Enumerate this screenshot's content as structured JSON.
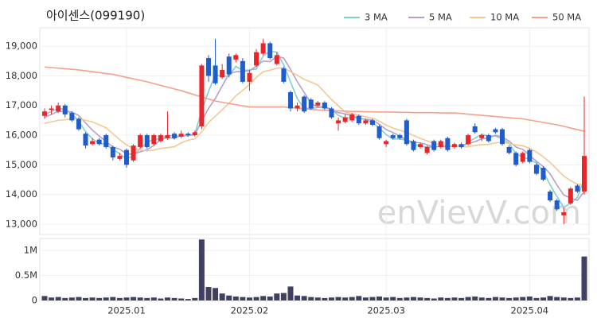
{
  "chart_data": [
    {
      "type": "candlestick",
      "title": "아이센스(099190)",
      "watermark": "enVievV.com",
      "up_color": "#e8262a",
      "down_color": "#1f5ccc",
      "grid": true,
      "legend": "top-right",
      "categories": [
        null,
        null,
        null,
        null,
        null,
        null,
        null,
        null,
        null,
        null,
        null,
        null,
        "2025.01",
        null,
        null,
        null,
        null,
        null,
        null,
        null,
        null,
        null,
        null,
        null,
        null,
        null,
        null,
        null,
        null,
        null,
        "2025.02",
        null,
        null,
        null,
        null,
        null,
        null,
        null,
        null,
        null,
        null,
        null,
        null,
        null,
        null,
        null,
        null,
        null,
        null,
        null,
        "2025.03",
        null,
        null,
        null,
        null,
        null,
        null,
        null,
        null,
        null,
        null,
        null,
        null,
        null,
        null,
        null,
        null,
        null,
        null,
        null,
        null,
        "2025.04",
        null,
        null,
        null,
        null,
        null,
        null,
        null,
        null
      ],
      "open": [
        16650,
        16850,
        16800,
        17000,
        16750,
        16550,
        16050,
        15700,
        15850,
        16000,
        15600,
        15200,
        15500,
        15150,
        15600,
        16000,
        15700,
        15800,
        15900,
        16050,
        15950,
        16050,
        16000,
        16300,
        18600,
        18350,
        17950,
        18650,
        18550,
        18500,
        17800,
        18350,
        18750,
        19100,
        18400,
        18250,
        17450,
        16900,
        17300,
        17200,
        17000,
        17100,
        16900,
        16400,
        16450,
        16500,
        16650,
        16400,
        16500,
        16300,
        15700,
        16000,
        16000,
        16500,
        15800,
        15600,
        15400,
        15800,
        15600,
        15900,
        15600,
        15700,
        15700,
        16300,
        15900,
        16000,
        16200,
        16200,
        15600,
        15400,
        15100,
        15500,
        15000,
        14900,
        14100,
        13800,
        13300,
        13700,
        14300,
        14100
      ],
      "high": [
        16900,
        17000,
        17100,
        17050,
        16800,
        16600,
        16100,
        15900,
        15900,
        16050,
        15650,
        15400,
        15550,
        15700,
        16050,
        16050,
        16050,
        16050,
        16800,
        16100,
        16150,
        16100,
        16150,
        18400,
        18700,
        19250,
        18400,
        18750,
        18750,
        18600,
        18200,
        18900,
        19250,
        19150,
        18800,
        18300,
        17500,
        17100,
        17350,
        17250,
        17150,
        17150,
        16950,
        16600,
        16700,
        16750,
        16700,
        16550,
        16550,
        16350,
        15850,
        16050,
        16050,
        16550,
        15850,
        15750,
        15650,
        15850,
        15850,
        15950,
        15750,
        15750,
        16050,
        16400,
        16050,
        16050,
        16250,
        16250,
        15650,
        15450,
        15450,
        15550,
        15050,
        14950,
        14150,
        13850,
        13550,
        14250,
        14350,
        17300
      ],
      "low": [
        16550,
        16700,
        16750,
        16600,
        16450,
        16150,
        15550,
        15650,
        15650,
        15550,
        15150,
        15150,
        14900,
        15100,
        15550,
        15550,
        15650,
        15750,
        15850,
        15850,
        15900,
        15950,
        15950,
        16200,
        17800,
        17700,
        17900,
        17950,
        18450,
        17750,
        17500,
        18300,
        18700,
        18550,
        18350,
        17750,
        16800,
        16800,
        16750,
        16850,
        16950,
        16850,
        16550,
        16150,
        16400,
        16450,
        16350,
        16350,
        16300,
        15850,
        15600,
        15850,
        15850,
        15650,
        15450,
        15550,
        15350,
        15450,
        15550,
        15450,
        15550,
        15550,
        15650,
        16050,
        15800,
        15750,
        16050,
        15650,
        15350,
        14950,
        15050,
        15050,
        14650,
        14450,
        13750,
        13450,
        13000,
        13650,
        14050,
        14000
      ],
      "close": [
        16800,
        16900,
        17000,
        16700,
        16500,
        16200,
        15650,
        15800,
        15700,
        15600,
        15250,
        15300,
        15000,
        15650,
        16000,
        15600,
        16000,
        16000,
        16000,
        15900,
        16050,
        16000,
        16100,
        18350,
        18000,
        17750,
        18200,
        18050,
        18700,
        17800,
        18100,
        18800,
        19100,
        18600,
        18700,
        17800,
        16900,
        17000,
        16800,
        16900,
        17100,
        16900,
        16600,
        16500,
        16600,
        16700,
        16400,
        16500,
        16350,
        15900,
        15800,
        15900,
        15900,
        15700,
        15500,
        15700,
        15600,
        15500,
        15800,
        15500,
        15700,
        15600,
        16000,
        16100,
        16000,
        15800,
        16100,
        15700,
        15400,
        15000,
        15400,
        15100,
        14700,
        14500,
        13800,
        13500,
        13400,
        14200,
        14100,
        15300
      ],
      "series": [
        {
          "name": "3 MA",
          "color": "#7fd0d4",
          "values": [
            16700,
            16800,
            16900,
            16870,
            16730,
            16470,
            16120,
            15880,
            15720,
            15700,
            15520,
            15380,
            15180,
            15320,
            15550,
            15750,
            15870,
            15870,
            16000,
            15970,
            15980,
            15980,
            16050,
            16820,
            17480,
            18030,
            17980,
            18000,
            18320,
            18180,
            18200,
            18230,
            18670,
            18830,
            18800,
            18370,
            17800,
            17230,
            16900,
            16900,
            16930,
            16970,
            16870,
            16670,
            16570,
            16600,
            16570,
            16530,
            16420,
            16250,
            16020,
            15870,
            15870,
            15830,
            15700,
            15630,
            15600,
            15600,
            15630,
            15600,
            15670,
            15600,
            15770,
            15900,
            16030,
            15970,
            15970,
            15870,
            15730,
            15370,
            15270,
            15170,
            15070,
            14770,
            14330,
            13930,
            13570,
            13700,
            13900,
            14530
          ]
        },
        {
          "name": "5 MA",
          "color": "#b7a0c8",
          "values": [
            16600,
            16700,
            16800,
            16800,
            16780,
            16660,
            16410,
            16170,
            15970,
            15790,
            15600,
            15530,
            15370,
            15360,
            15440,
            15510,
            15650,
            15850,
            15920,
            15900,
            15990,
            15990,
            16010,
            16480,
            16900,
            17240,
            17660,
            18070,
            18140,
            18150,
            18170,
            18330,
            18500,
            18480,
            18660,
            18600,
            18220,
            17800,
            17440,
            17080,
            16940,
            16940,
            16860,
            16760,
            16720,
            16660,
            16560,
            16540,
            16510,
            16370,
            16190,
            16090,
            15970,
            15840,
            15760,
            15740,
            15680,
            15600,
            15620,
            15620,
            15620,
            15620,
            15720,
            15780,
            15880,
            15900,
            16000,
            15940,
            15800,
            15600,
            15520,
            15320,
            15120,
            14940,
            14700,
            14320,
            13980,
            13880,
            13800,
            14100
          ]
        },
        {
          "name": "10 MA",
          "color": "#f3c893",
          "values": [
            16400,
            16450,
            16500,
            16520,
            16550,
            16560,
            16500,
            16450,
            16350,
            16250,
            16050,
            15850,
            15670,
            15550,
            15500,
            15470,
            15500,
            15550,
            15580,
            15610,
            15740,
            15830,
            15880,
            16110,
            16430,
            16640,
            16860,
            17070,
            17330,
            17510,
            17710,
            17950,
            18140,
            18190,
            18260,
            18270,
            18140,
            18020,
            17880,
            17790,
            17690,
            17450,
            17200,
            16990,
            16780,
            16720,
            16670,
            16620,
            16570,
            16470,
            16340,
            16240,
            16170,
            16090,
            15990,
            15890,
            15810,
            15720,
            15680,
            15640,
            15630,
            15600,
            15610,
            15650,
            15680,
            15690,
            15740,
            15760,
            15720,
            15670,
            15640,
            15560,
            15430,
            15270,
            15080,
            14850,
            14620,
            14470,
            14340,
            14330
          ]
        },
        {
          "name": "50 MA",
          "color": "#f4a18c",
          "values": [
            18300,
            18280,
            18260,
            18240,
            18220,
            18200,
            18170,
            18140,
            18110,
            18080,
            18050,
            18000,
            17950,
            17900,
            17850,
            17800,
            17740,
            17680,
            17620,
            17560,
            17500,
            17430,
            17360,
            17290,
            17220,
            17150,
            17110,
            17070,
            17030,
            16990,
            16950,
            16950,
            16950,
            16950,
            16950,
            16950,
            16930,
            16910,
            16890,
            16870,
            16850,
            16840,
            16830,
            16820,
            16810,
            16800,
            16800,
            16790,
            16790,
            16780,
            16780,
            16780,
            16770,
            16770,
            16760,
            16760,
            16760,
            16760,
            16750,
            16750,
            16750,
            16730,
            16710,
            16690,
            16670,
            16650,
            16630,
            16610,
            16590,
            16570,
            16550,
            16510,
            16470,
            16430,
            16390,
            16350,
            16300,
            16240,
            16190,
            16130
          ]
        }
      ],
      "ylim": [
        12650,
        19620
      ],
      "yticks": [
        {
          "value": 13000,
          "label": "13,000"
        },
        {
          "value": 14000,
          "label": "14,000"
        },
        {
          "value": 15000,
          "label": "15,000"
        },
        {
          "value": 16000,
          "label": "16,000"
        },
        {
          "value": 17000,
          "label": "17,000"
        },
        {
          "value": 18000,
          "label": "18,000"
        },
        {
          "value": 19000,
          "label": "19,000"
        }
      ]
    },
    {
      "type": "bar",
      "color": "#3f4163",
      "grid": true,
      "values": [
        90000,
        60000,
        70000,
        50000,
        60000,
        70000,
        50000,
        60000,
        50000,
        60000,
        70000,
        50000,
        60000,
        70000,
        60000,
        50000,
        60000,
        40000,
        60000,
        50000,
        40000,
        30000,
        50000,
        1220000,
        270000,
        250000,
        140000,
        100000,
        80000,
        70000,
        60000,
        70000,
        90000,
        80000,
        140000,
        150000,
        280000,
        100000,
        90000,
        70000,
        60000,
        50000,
        60000,
        70000,
        60000,
        70000,
        90000,
        60000,
        70000,
        80000,
        60000,
        70000,
        50000,
        60000,
        70000,
        60000,
        50000,
        40000,
        60000,
        50000,
        60000,
        50000,
        70000,
        80000,
        60000,
        50000,
        70000,
        60000,
        50000,
        60000,
        70000,
        80000,
        50000,
        60000,
        90000,
        70000,
        60000,
        50000,
        60000,
        880000
      ],
      "ylim": [
        0,
        1240000
      ],
      "yticks": [
        0,
        {
          "value": 500000,
          "label": "0.5M"
        },
        {
          "value": 1000000,
          "label": "1M"
        }
      ]
    }
  ]
}
